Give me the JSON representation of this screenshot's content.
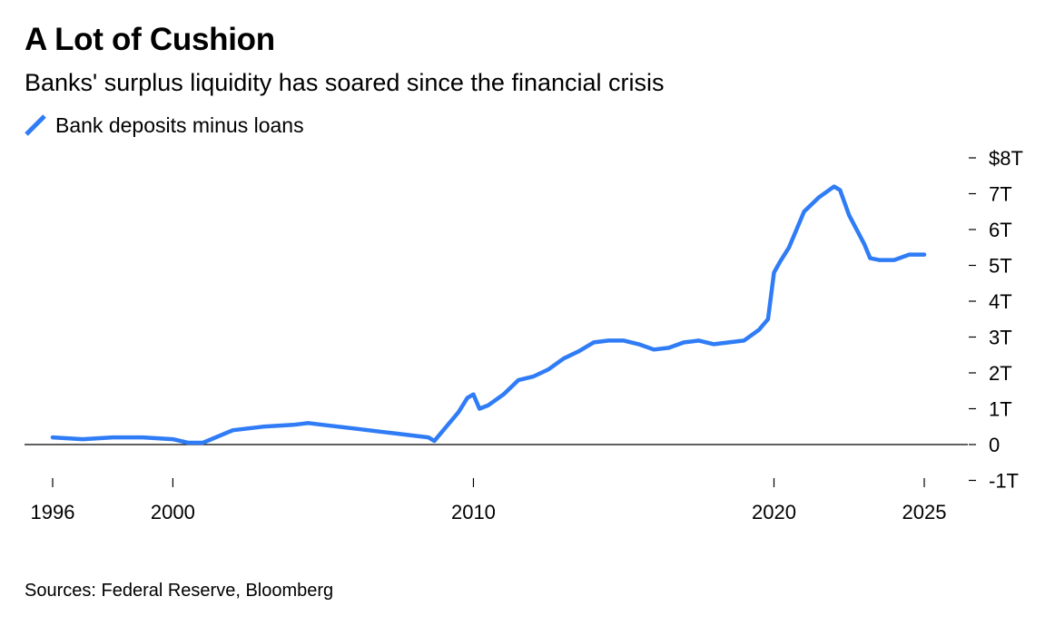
{
  "title": "A Lot of Cushion",
  "subtitle": "Banks' surplus liquidity has soared since the financial crisis",
  "source": "Sources: Federal Reserve, Bloomberg",
  "colors": {
    "series": "#2f7cf6",
    "axis": "#000000"
  },
  "chart_data": {
    "type": "line",
    "legend_placement": "top-left",
    "grid": false,
    "xlim": [
      1996,
      2026
    ],
    "ylim": [
      -1,
      8
    ],
    "x_ticks": [
      1996,
      2000,
      2010,
      2020,
      2025
    ],
    "x_tick_labels": [
      "1996",
      "2000",
      "2010",
      "2020",
      "2025"
    ],
    "y_ticks": [
      8,
      7,
      6,
      5,
      4,
      3,
      2,
      1,
      0,
      -1
    ],
    "y_tick_labels": [
      "$8T",
      "7T",
      "6T",
      "5T",
      "4T",
      "3T",
      "2T",
      "1T",
      "0",
      "-1T"
    ],
    "series": [
      {
        "name": "Bank deposits minus loans",
        "unit": "trillion USD",
        "x": [
          1996.0,
          1997.0,
          1998.0,
          1999.0,
          2000.0,
          2000.5,
          2001.0,
          2002.0,
          2003.0,
          2004.0,
          2004.5,
          2005.0,
          2006.0,
          2007.0,
          2007.5,
          2008.0,
          2008.5,
          2008.7,
          2009.0,
          2009.5,
          2009.8,
          2010.0,
          2010.2,
          2010.5,
          2011.0,
          2011.5,
          2012.0,
          2012.5,
          2013.0,
          2013.5,
          2014.0,
          2014.5,
          2015.0,
          2015.5,
          2016.0,
          2016.5,
          2017.0,
          2017.5,
          2018.0,
          2018.5,
          2019.0,
          2019.5,
          2019.8,
          2020.0,
          2020.2,
          2020.5,
          2021.0,
          2021.5,
          2022.0,
          2022.2,
          2022.5,
          2023.0,
          2023.2,
          2023.5,
          2024.0,
          2024.5,
          2025.0
        ],
        "values": [
          0.2,
          0.15,
          0.2,
          0.2,
          0.15,
          0.05,
          0.05,
          0.4,
          0.5,
          0.55,
          0.6,
          0.55,
          0.45,
          0.35,
          0.3,
          0.25,
          0.2,
          0.1,
          0.4,
          0.9,
          1.3,
          1.4,
          1.0,
          1.1,
          1.4,
          1.8,
          1.9,
          2.1,
          2.4,
          2.6,
          2.85,
          2.9,
          2.9,
          2.8,
          2.65,
          2.7,
          2.85,
          2.9,
          2.8,
          2.85,
          2.9,
          3.2,
          3.5,
          4.8,
          5.1,
          5.5,
          6.5,
          6.9,
          7.2,
          7.1,
          6.4,
          5.6,
          5.2,
          5.15,
          5.15,
          5.3,
          5.3
        ]
      }
    ]
  }
}
